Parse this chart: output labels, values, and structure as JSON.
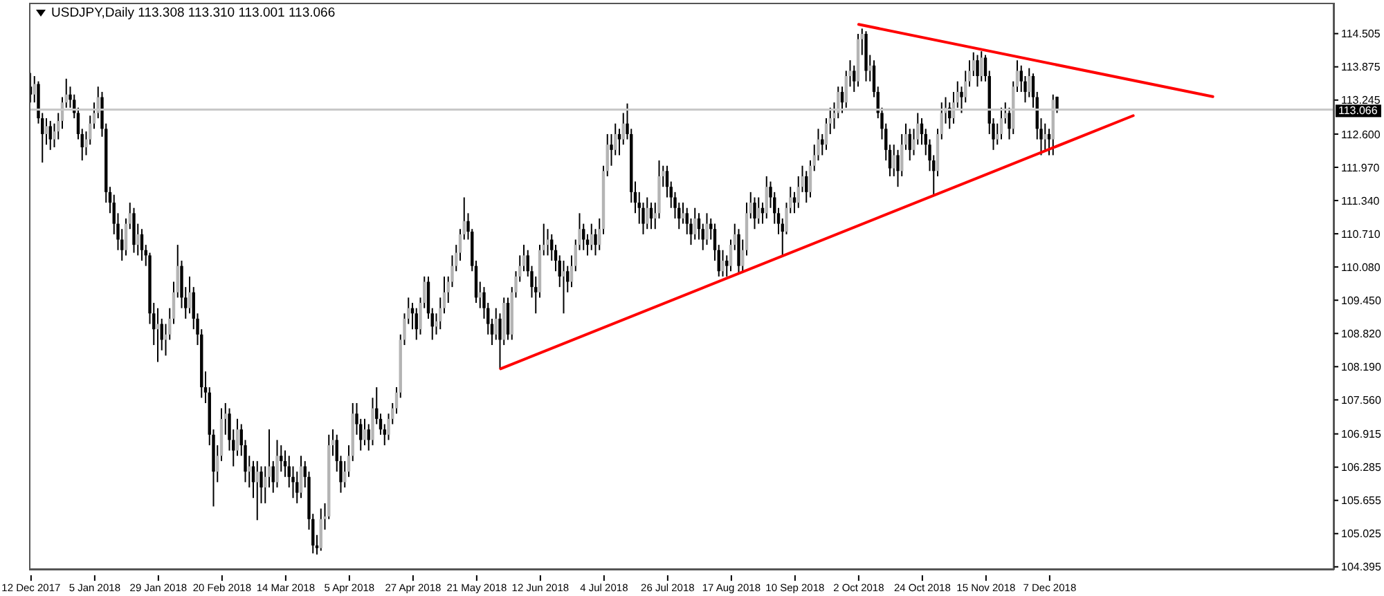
{
  "chart_data": {
    "type": "candlestick",
    "title": "USDJPY,Daily 113.308 113.310 113.001 113.066",
    "categories": [
      "12 Dec 2017",
      null,
      null,
      null,
      null,
      null,
      null,
      null,
      null,
      null,
      null,
      null,
      null,
      null,
      null,
      null,
      "5 Jan 2018",
      null,
      null,
      null,
      null,
      null,
      null,
      null,
      null,
      null,
      null,
      null,
      null,
      null,
      null,
      null,
      "29 Jan 2018",
      null,
      null,
      null,
      null,
      null,
      null,
      null,
      null,
      null,
      null,
      null,
      null,
      null,
      null,
      null,
      "20 Feb 2018",
      null,
      null,
      null,
      null,
      null,
      null,
      null,
      null,
      null,
      null,
      null,
      null,
      null,
      null,
      null,
      "14 Mar 2018",
      null,
      null,
      null,
      null,
      null,
      null,
      null,
      null,
      null,
      null,
      null,
      null,
      null,
      null,
      null,
      "5 Apr 2018",
      null,
      null,
      null,
      null,
      null,
      null,
      null,
      null,
      null,
      null,
      null,
      null,
      null,
      null,
      null,
      "27 Apr 2018",
      null,
      null,
      null,
      null,
      null,
      null,
      null,
      null,
      null,
      null,
      null,
      null,
      null,
      null,
      null,
      "21 May 2018",
      null,
      null,
      null,
      null,
      null,
      null,
      null,
      null,
      null,
      null,
      null,
      null,
      null,
      null,
      null,
      "12 Jun 2018",
      null,
      null,
      null,
      null,
      null,
      null,
      null,
      null,
      null,
      null,
      null,
      null,
      null,
      null,
      null,
      "4 Jul 2018",
      null,
      null,
      null,
      null,
      null,
      null,
      null,
      null,
      null,
      null,
      null,
      null,
      null,
      null,
      null,
      "26 Jul 2018",
      null,
      null,
      null,
      null,
      null,
      null,
      null,
      null,
      null,
      null,
      null,
      null,
      null,
      null,
      null,
      "17 Aug 2018",
      null,
      null,
      null,
      null,
      null,
      null,
      null,
      null,
      null,
      null,
      null,
      null,
      null,
      null,
      null,
      "10 Sep 2018",
      null,
      null,
      null,
      null,
      null,
      null,
      null,
      null,
      null,
      null,
      null,
      null,
      null,
      null,
      null,
      "2 Oct 2018",
      null,
      null,
      null,
      null,
      null,
      null,
      null,
      null,
      null,
      null,
      null,
      null,
      null,
      null,
      null,
      "24 Oct 2018",
      null,
      null,
      null,
      null,
      null,
      null,
      null,
      null,
      null,
      null,
      null,
      null,
      null,
      null,
      null,
      "15 Nov 2018",
      null,
      null,
      null,
      null,
      null,
      null,
      null,
      null,
      null,
      null,
      null,
      null,
      null,
      null,
      null,
      "7 Dec 2018",
      null,
      null,
      null,
      null,
      null,
      null,
      null,
      null,
      null,
      null,
      null,
      null,
      null,
      null,
      null,
      null,
      null,
      null,
      null,
      null,
      null,
      null,
      null,
      null,
      null,
      null,
      null,
      null,
      null,
      null,
      null,
      null,
      null,
      null,
      null,
      null,
      null,
      null,
      null,
      null,
      null,
      null,
      null,
      null,
      null,
      null,
      null,
      null,
      null,
      null,
      null,
      null,
      null,
      null,
      null,
      null,
      null,
      null,
      null,
      null,
      null,
      null,
      null,
      null,
      null,
      null,
      null,
      null,
      null,
      null,
      null
    ],
    "ohlc": [
      [
        113.5,
        113.76,
        113.2,
        113.35
      ],
      [
        113.35,
        113.7,
        113.2,
        113.55
      ],
      [
        113.55,
        113.6,
        112.8,
        112.9
      ],
      [
        112.9,
        113.0,
        112.06,
        112.6
      ],
      [
        112.6,
        112.9,
        112.4,
        112.75
      ],
      [
        112.75,
        112.85,
        112.3,
        112.5
      ],
      [
        112.5,
        112.8,
        112.35,
        112.65
      ],
      [
        112.65,
        113.0,
        112.5,
        112.85
      ],
      [
        112.85,
        113.3,
        112.7,
        113.2
      ],
      [
        113.2,
        113.65,
        113.1,
        113.35
      ],
      [
        113.35,
        113.5,
        113.1,
        113.25
      ],
      [
        113.25,
        113.35,
        112.9,
        113.0
      ],
      [
        113.0,
        113.1,
        112.5,
        112.6
      ],
      [
        112.6,
        112.7,
        112.1,
        112.35
      ],
      [
        112.35,
        112.65,
        112.2,
        112.5
      ],
      [
        112.5,
        112.95,
        112.4,
        112.8
      ],
      [
        112.8,
        113.2,
        112.7,
        113.0
      ],
      [
        113.0,
        113.5,
        112.9,
        113.3
      ],
      [
        113.3,
        113.4,
        112.55,
        112.7
      ],
      [
        112.7,
        112.8,
        111.3,
        111.5
      ],
      [
        111.5,
        111.6,
        111.1,
        111.3
      ],
      [
        111.3,
        111.45,
        110.7,
        110.9
      ],
      [
        110.9,
        111.1,
        110.4,
        110.6
      ],
      [
        110.6,
        110.8,
        110.2,
        110.4
      ],
      [
        110.4,
        111.0,
        110.3,
        110.9
      ],
      [
        110.9,
        111.3,
        110.8,
        111.1
      ],
      [
        111.1,
        111.2,
        110.35,
        110.5
      ],
      [
        110.5,
        110.9,
        110.3,
        110.7
      ],
      [
        110.7,
        110.8,
        110.2,
        110.4
      ],
      [
        110.4,
        110.5,
        110.1,
        110.3
      ],
      [
        110.3,
        110.35,
        109.0,
        109.2
      ],
      [
        109.2,
        109.4,
        108.6,
        108.9
      ],
      [
        108.9,
        109.3,
        108.28,
        109.0
      ],
      [
        109.0,
        109.1,
        108.5,
        108.7
      ],
      [
        108.7,
        109.0,
        108.4,
        108.8
      ],
      [
        108.8,
        109.3,
        108.7,
        109.1
      ],
      [
        109.1,
        109.8,
        109.0,
        109.6
      ],
      [
        109.6,
        110.5,
        109.5,
        110.1
      ],
      [
        110.1,
        110.2,
        109.3,
        109.5
      ],
      [
        109.5,
        109.7,
        109.1,
        109.3
      ],
      [
        109.3,
        109.9,
        109.2,
        109.6
      ],
      [
        109.6,
        109.7,
        108.9,
        109.1
      ],
      [
        109.1,
        109.2,
        108.6,
        108.8
      ],
      [
        108.8,
        108.9,
        107.6,
        107.8
      ],
      [
        107.8,
        108.1,
        107.5,
        107.7
      ],
      [
        107.7,
        107.8,
        106.7,
        106.9
      ],
      [
        106.9,
        107.0,
        105.54,
        106.2
      ],
      [
        106.2,
        106.7,
        106.0,
        106.5
      ],
      [
        106.5,
        107.4,
        106.4,
        107.2
      ],
      [
        107.2,
        107.5,
        106.9,
        107.3
      ],
      [
        107.3,
        107.4,
        106.6,
        106.8
      ],
      [
        106.8,
        107.0,
        106.3,
        106.6
      ],
      [
        106.6,
        107.2,
        106.5,
        107.0
      ],
      [
        107.0,
        107.1,
        106.5,
        106.7
      ],
      [
        106.7,
        106.8,
        106.0,
        106.2
      ],
      [
        106.2,
        106.5,
        105.9,
        106.3
      ],
      [
        106.3,
        106.4,
        105.7,
        106.0
      ],
      [
        106.0,
        106.4,
        105.28,
        106.2
      ],
      [
        106.2,
        106.3,
        105.6,
        105.9
      ],
      [
        105.9,
        106.3,
        105.6,
        106.1
      ],
      [
        106.1,
        107.0,
        105.9,
        106.3
      ],
      [
        106.3,
        106.4,
        105.8,
        106.0
      ],
      [
        106.0,
        106.8,
        105.9,
        106.5
      ],
      [
        106.5,
        106.7,
        106.2,
        106.4
      ],
      [
        106.4,
        106.6,
        106.1,
        106.3
      ],
      [
        106.3,
        106.5,
        105.9,
        106.1
      ],
      [
        106.1,
        106.3,
        105.7,
        106.0
      ],
      [
        106.0,
        106.2,
        105.6,
        105.8
      ],
      [
        105.8,
        106.5,
        105.7,
        106.3
      ],
      [
        106.3,
        106.4,
        105.9,
        106.1
      ],
      [
        106.1,
        106.2,
        105.1,
        105.3
      ],
      [
        105.3,
        105.4,
        104.65,
        104.8
      ],
      [
        104.8,
        105.0,
        104.63,
        104.75
      ],
      [
        104.75,
        105.5,
        104.7,
        105.3
      ],
      [
        105.3,
        105.6,
        105.1,
        105.35
      ],
      [
        105.35,
        106.9,
        105.3,
        106.7
      ],
      [
        106.7,
        107.0,
        106.5,
        106.8
      ],
      [
        106.8,
        106.9,
        106.2,
        106.4
      ],
      [
        106.4,
        106.5,
        105.8,
        106.0
      ],
      [
        106.0,
        106.4,
        105.9,
        106.2
      ],
      [
        106.2,
        106.7,
        106.1,
        106.5
      ],
      [
        106.5,
        107.5,
        106.4,
        107.3
      ],
      [
        107.3,
        107.5,
        106.9,
        107.1
      ],
      [
        107.1,
        107.2,
        106.6,
        106.8
      ],
      [
        106.8,
        107.2,
        106.7,
        107.0
      ],
      [
        107.0,
        107.1,
        106.6,
        106.8
      ],
      [
        106.8,
        107.6,
        106.7,
        107.4
      ],
      [
        107.4,
        107.8,
        107.1,
        107.2
      ],
      [
        107.2,
        107.3,
        106.9,
        107.0
      ],
      [
        107.0,
        107.1,
        106.7,
        106.9
      ],
      [
        106.9,
        107.3,
        106.8,
        107.2
      ],
      [
        107.2,
        107.5,
        107.1,
        107.4
      ],
      [
        107.4,
        107.8,
        107.3,
        107.7
      ],
      [
        107.7,
        108.8,
        107.6,
        108.7
      ],
      [
        108.7,
        109.2,
        108.6,
        109.1
      ],
      [
        109.1,
        109.5,
        109.0,
        109.3
      ],
      [
        109.3,
        109.4,
        108.9,
        109.2
      ],
      [
        109.2,
        109.3,
        108.7,
        108.9
      ],
      [
        108.9,
        109.5,
        108.8,
        109.4
      ],
      [
        109.4,
        109.9,
        109.3,
        109.8
      ],
      [
        109.8,
        109.9,
        109.1,
        109.2
      ],
      [
        109.2,
        109.3,
        108.7,
        108.95
      ],
      [
        108.95,
        109.2,
        108.8,
        109.05
      ],
      [
        109.05,
        109.5,
        108.9,
        109.3
      ],
      [
        109.3,
        109.9,
        109.2,
        109.6
      ],
      [
        109.6,
        109.9,
        109.4,
        109.8
      ],
      [
        109.8,
        110.3,
        109.7,
        110.1
      ],
      [
        110.1,
        110.5,
        110.0,
        110.35
      ],
      [
        110.35,
        110.8,
        110.2,
        110.7
      ],
      [
        110.7,
        111.4,
        110.6,
        110.95
      ],
      [
        110.95,
        111.1,
        110.6,
        110.75
      ],
      [
        110.75,
        110.8,
        110.0,
        110.1
      ],
      [
        110.1,
        110.2,
        109.4,
        109.5
      ],
      [
        109.5,
        109.8,
        109.3,
        109.6
      ],
      [
        109.6,
        109.7,
        109.1,
        109.3
      ],
      [
        109.3,
        109.4,
        108.8,
        109.0
      ],
      [
        109.0,
        109.1,
        108.6,
        108.8
      ],
      [
        108.8,
        109.3,
        108.7,
        109.1
      ],
      [
        109.1,
        109.2,
        108.15,
        108.7
      ],
      [
        108.7,
        109.5,
        108.6,
        109.4
      ],
      [
        109.4,
        109.5,
        108.7,
        108.8
      ],
      [
        108.8,
        109.7,
        108.7,
        109.6
      ],
      [
        109.6,
        110.0,
        109.5,
        109.9
      ],
      [
        109.9,
        110.3,
        109.8,
        110.1
      ],
      [
        110.1,
        110.5,
        110.0,
        110.3
      ],
      [
        110.3,
        110.4,
        109.9,
        110.0
      ],
      [
        110.0,
        110.1,
        109.5,
        109.7
      ],
      [
        109.7,
        109.9,
        109.2,
        109.6
      ],
      [
        109.6,
        110.5,
        109.5,
        110.4
      ],
      [
        110.4,
        110.9,
        110.3,
        110.5
      ],
      [
        110.5,
        110.8,
        110.3,
        110.6
      ],
      [
        110.6,
        110.7,
        110.2,
        110.4
      ],
      [
        110.4,
        110.5,
        110.0,
        110.2
      ],
      [
        110.2,
        110.3,
        109.7,
        109.9
      ],
      [
        109.9,
        110.2,
        109.2,
        110.0
      ],
      [
        110.0,
        110.1,
        109.6,
        109.8
      ],
      [
        109.8,
        110.3,
        109.7,
        110.1
      ],
      [
        110.1,
        110.6,
        110.0,
        110.5
      ],
      [
        110.5,
        111.1,
        110.4,
        110.8
      ],
      [
        110.8,
        110.9,
        110.4,
        110.6
      ],
      [
        110.6,
        110.7,
        110.3,
        110.5
      ],
      [
        110.5,
        110.9,
        110.4,
        110.7
      ],
      [
        110.7,
        110.8,
        110.3,
        110.5
      ],
      [
        110.5,
        111.0,
        110.4,
        110.8
      ],
      [
        110.8,
        112.0,
        110.7,
        111.9
      ],
      [
        111.9,
        112.6,
        111.8,
        112.4
      ],
      [
        112.4,
        112.6,
        112.0,
        112.3
      ],
      [
        112.3,
        112.8,
        112.2,
        112.6
      ],
      [
        112.6,
        112.7,
        112.2,
        112.5
      ],
      [
        112.5,
        113.0,
        112.4,
        112.8
      ],
      [
        112.8,
        113.18,
        112.5,
        112.6
      ],
      [
        112.6,
        112.7,
        111.3,
        111.5
      ],
      [
        111.5,
        111.7,
        111.1,
        111.3
      ],
      [
        111.3,
        111.5,
        110.9,
        111.2
      ],
      [
        111.2,
        111.3,
        110.7,
        110.9
      ],
      [
        110.9,
        111.4,
        110.8,
        111.2
      ],
      [
        111.2,
        111.3,
        110.8,
        111.0
      ],
      [
        111.0,
        111.3,
        110.8,
        111.1
      ],
      [
        111.1,
        112.1,
        111.0,
        111.8
      ],
      [
        111.8,
        112.0,
        111.6,
        111.9
      ],
      [
        111.9,
        112.0,
        111.4,
        111.6
      ],
      [
        111.6,
        111.7,
        111.2,
        111.4
      ],
      [
        111.4,
        111.5,
        111.0,
        111.2
      ],
      [
        111.2,
        111.3,
        110.8,
        111.0
      ],
      [
        111.0,
        111.3,
        110.9,
        111.1
      ],
      [
        111.1,
        111.2,
        110.7,
        110.9
      ],
      [
        110.9,
        111.0,
        110.5,
        110.7
      ],
      [
        110.7,
        111.2,
        110.6,
        111.0
      ],
      [
        111.0,
        111.1,
        110.6,
        110.8
      ],
      [
        110.8,
        110.9,
        110.4,
        110.6
      ],
      [
        110.6,
        111.1,
        110.5,
        110.9
      ],
      [
        110.9,
        111.0,
        110.6,
        110.8
      ],
      [
        110.8,
        110.9,
        110.2,
        110.4
      ],
      [
        110.4,
        110.5,
        109.9,
        110.0
      ],
      [
        110.0,
        110.4,
        109.9,
        110.2
      ],
      [
        110.2,
        110.3,
        109.9,
        110.1
      ],
      [
        110.1,
        110.6,
        110.0,
        110.5
      ],
      [
        110.5,
        110.9,
        110.4,
        110.7
      ],
      [
        110.7,
        110.8,
        109.95,
        110.1
      ],
      [
        110.1,
        110.6,
        109.98,
        110.4
      ],
      [
        110.4,
        111.3,
        110.3,
        111.1
      ],
      [
        111.1,
        111.5,
        111.0,
        111.3
      ],
      [
        111.3,
        111.4,
        110.8,
        111.0
      ],
      [
        111.0,
        111.4,
        110.9,
        111.2
      ],
      [
        111.2,
        111.3,
        110.9,
        111.1
      ],
      [
        111.1,
        111.8,
        111.0,
        111.6
      ],
      [
        111.6,
        111.7,
        111.2,
        111.4
      ],
      [
        111.4,
        111.5,
        110.9,
        111.1
      ],
      [
        111.1,
        111.2,
        110.7,
        110.9
      ],
      [
        110.9,
        111.0,
        110.3,
        110.75
      ],
      [
        110.75,
        111.3,
        110.7,
        111.2
      ],
      [
        111.2,
        111.6,
        111.1,
        111.4
      ],
      [
        111.4,
        111.5,
        111.1,
        111.3
      ],
      [
        111.3,
        111.8,
        111.2,
        111.6
      ],
      [
        111.6,
        112.0,
        111.5,
        111.8
      ],
      [
        111.8,
        111.9,
        111.3,
        111.5
      ],
      [
        111.5,
        112.1,
        111.4,
        112.0
      ],
      [
        112.0,
        112.4,
        111.9,
        112.2
      ],
      [
        112.2,
        112.7,
        112.1,
        112.5
      ],
      [
        112.5,
        112.6,
        112.2,
        112.4
      ],
      [
        112.4,
        112.9,
        112.3,
        112.8
      ],
      [
        112.8,
        113.1,
        112.6,
        112.9
      ],
      [
        112.9,
        113.2,
        112.7,
        113.0
      ],
      [
        113.0,
        113.5,
        112.9,
        113.4
      ],
      [
        113.4,
        113.5,
        113.0,
        113.2
      ],
      [
        113.2,
        113.8,
        113.1,
        113.7
      ],
      [
        113.7,
        114.0,
        113.5,
        113.8
      ],
      [
        113.8,
        113.9,
        113.4,
        113.6
      ],
      [
        113.6,
        114.5,
        113.5,
        114.4
      ],
      [
        114.4,
        114.6,
        114.1,
        114.5
      ],
      [
        114.5,
        114.55,
        113.6,
        113.8
      ],
      [
        113.8,
        114.1,
        113.6,
        113.9
      ],
      [
        113.9,
        114.0,
        113.3,
        113.4
      ],
      [
        113.4,
        113.5,
        112.9,
        113.0
      ],
      [
        113.0,
        113.1,
        112.5,
        112.7
      ],
      [
        112.7,
        112.8,
        112.1,
        112.3
      ],
      [
        112.3,
        112.4,
        111.8,
        111.95
      ],
      [
        111.95,
        112.4,
        111.8,
        112.2
      ],
      [
        112.2,
        112.3,
        111.6,
        111.9
      ],
      [
        111.9,
        112.6,
        111.8,
        112.4
      ],
      [
        112.4,
        112.8,
        112.3,
        112.6
      ],
      [
        112.6,
        112.7,
        112.1,
        112.3
      ],
      [
        112.3,
        112.7,
        112.2,
        112.5
      ],
      [
        112.5,
        113.0,
        112.4,
        112.8
      ],
      [
        112.8,
        112.9,
        112.4,
        112.6
      ],
      [
        112.6,
        112.7,
        112.2,
        112.4
      ],
      [
        112.4,
        112.5,
        111.9,
        112.1
      ],
      [
        112.1,
        112.2,
        111.44,
        111.9
      ],
      [
        111.9,
        112.7,
        111.8,
        112.6
      ],
      [
        112.6,
        113.2,
        112.5,
        113.0
      ],
      [
        113.0,
        113.3,
        112.8,
        113.1
      ],
      [
        113.1,
        113.2,
        112.7,
        112.9
      ],
      [
        112.9,
        113.4,
        112.8,
        113.2
      ],
      [
        113.2,
        113.6,
        113.1,
        113.4
      ],
      [
        113.4,
        113.5,
        113.0,
        113.3
      ],
      [
        113.3,
        113.8,
        113.2,
        113.6
      ],
      [
        113.6,
        114.0,
        113.5,
        113.8
      ],
      [
        113.8,
        114.15,
        113.7,
        114.0
      ],
      [
        114.0,
        114.1,
        113.5,
        113.7
      ],
      [
        113.7,
        114.17,
        113.6,
        114.05
      ],
      [
        114.05,
        114.1,
        113.6,
        113.7
      ],
      [
        113.7,
        113.8,
        112.6,
        112.8
      ],
      [
        112.8,
        112.9,
        112.3,
        112.5
      ],
      [
        112.5,
        112.8,
        112.4,
        112.6
      ],
      [
        112.6,
        113.1,
        112.5,
        112.9
      ],
      [
        112.9,
        113.2,
        112.8,
        113.0
      ],
      [
        113.0,
        113.1,
        112.5,
        112.7
      ],
      [
        112.7,
        113.6,
        112.6,
        113.5
      ],
      [
        113.5,
        114.0,
        113.4,
        113.8
      ],
      [
        113.8,
        113.9,
        113.4,
        113.6
      ],
      [
        113.6,
        113.7,
        113.2,
        113.4
      ],
      [
        113.4,
        113.85,
        113.3,
        113.7
      ],
      [
        113.7,
        113.75,
        113.1,
        113.3
      ],
      [
        113.3,
        113.4,
        112.5,
        112.7
      ],
      [
        112.7,
        112.9,
        112.2,
        112.5
      ],
      [
        112.5,
        112.8,
        112.3,
        112.6
      ],
      [
        112.6,
        112.7,
        112.2,
        112.5
      ],
      [
        112.5,
        113.35,
        112.2,
        113.25
      ],
      [
        113.308,
        113.31,
        113.001,
        113.066
      ],
      null,
      null,
      null,
      null,
      null,
      null,
      null,
      null,
      null,
      null,
      null,
      null,
      null,
      null,
      null,
      null,
      null,
      null,
      null,
      null,
      null,
      null,
      null,
      null,
      null,
      null,
      null,
      null,
      null,
      null,
      null,
      null,
      null,
      null,
      null,
      null,
      null,
      null,
      null,
      null,
      null,
      null,
      null,
      null,
      null,
      null,
      null,
      null,
      null,
      null,
      null,
      null,
      null,
      null,
      null,
      null,
      null,
      null,
      null,
      null,
      null,
      null,
      null,
      null,
      null,
      null,
      null,
      null,
      null
    ],
    "series": [
      {
        "type": "line",
        "color": "#ff0000",
        "values": [
          null,
          null,
          null,
          null,
          null,
          null,
          null,
          null,
          null,
          null,
          null,
          null,
          null,
          null,
          null,
          null,
          null,
          null,
          null,
          null,
          null,
          null,
          null,
          null,
          null,
          null,
          null,
          null,
          null,
          null,
          null,
          null,
          null,
          null,
          null,
          null,
          null,
          null,
          null,
          null,
          null,
          null,
          null,
          null,
          null,
          null,
          null,
          null,
          null,
          null,
          null,
          null,
          null,
          null,
          null,
          null,
          null,
          null,
          null,
          null,
          null,
          null,
          null,
          null,
          null,
          null,
          null,
          null,
          null,
          null,
          null,
          null,
          null,
          null,
          null,
          null,
          null,
          null,
          null,
          null,
          null,
          null,
          null,
          null,
          null,
          null,
          null,
          null,
          null,
          null,
          null,
          null,
          null,
          null,
          null,
          null,
          null,
          null,
          null,
          null,
          null,
          null,
          null,
          null,
          null,
          null,
          null,
          null,
          null,
          null,
          null,
          null,
          null,
          null,
          null,
          null,
          null,
          null,
          108.15,
          null,
          null,
          null,
          null,
          null,
          null,
          null,
          null,
          null,
          null,
          null,
          null,
          null,
          null,
          null,
          null,
          null,
          null,
          null,
          null,
          null,
          null,
          null,
          null,
          null,
          null,
          null,
          null,
          null,
          null,
          null,
          null,
          null,
          null,
          null,
          null,
          null,
          null,
          null,
          null,
          null,
          null,
          null,
          null,
          null,
          null,
          null,
          null,
          null,
          null,
          null,
          null,
          null,
          null,
          null,
          null,
          null,
          null,
          null,
          null,
          null,
          null,
          null,
          null,
          null,
          null,
          null,
          null,
          null,
          null,
          null,
          null,
          null,
          null,
          null,
          null,
          null,
          null,
          null,
          null,
          null,
          null,
          null,
          null,
          null,
          null,
          null,
          null,
          null,
          null,
          null,
          null,
          null,
          null,
          null,
          null,
          null,
          null,
          null,
          null,
          null,
          null,
          null,
          null,
          null,
          null,
          null,
          null,
          null,
          null,
          null,
          null,
          null,
          null,
          null,
          null,
          null,
          null,
          null,
          null,
          null,
          null,
          null,
          null,
          null,
          null,
          null,
          null,
          null,
          null,
          null,
          null,
          null,
          null,
          null,
          null,
          null,
          null,
          null,
          null,
          null,
          null,
          null,
          null,
          null,
          null,
          null,
          null,
          null,
          null,
          null,
          null,
          null,
          null,
          null,
          null,
          null,
          null,
          112.95,
          null,
          null,
          null,
          null,
          null,
          null,
          null,
          null,
          null,
          null,
          null,
          null,
          null,
          null,
          null,
          null,
          null,
          null,
          null,
          null,
          null,
          null,
          null,
          null,
          null,
          null,
          null,
          null,
          null,
          null,
          null,
          null,
          null,
          null,
          null,
          null,
          null,
          null,
          null,
          null,
          null,
          null,
          null,
          null,
          null,
          null,
          null,
          null,
          null,
          null
        ]
      },
      {
        "type": "line",
        "color": "#ff0000",
        "values": [
          null,
          null,
          null,
          null,
          null,
          null,
          null,
          null,
          null,
          null,
          null,
          null,
          null,
          null,
          null,
          null,
          null,
          null,
          null,
          null,
          null,
          null,
          null,
          null,
          null,
          null,
          null,
          null,
          null,
          null,
          null,
          null,
          null,
          null,
          null,
          null,
          null,
          null,
          null,
          null,
          null,
          null,
          null,
          null,
          null,
          null,
          null,
          null,
          null,
          null,
          null,
          null,
          null,
          null,
          null,
          null,
          null,
          null,
          null,
          null,
          null,
          null,
          null,
          null,
          null,
          null,
          null,
          null,
          null,
          null,
          null,
          null,
          null,
          null,
          null,
          null,
          null,
          null,
          null,
          null,
          null,
          null,
          null,
          null,
          null,
          null,
          null,
          null,
          null,
          null,
          null,
          null,
          null,
          null,
          null,
          null,
          null,
          null,
          null,
          null,
          null,
          null,
          null,
          null,
          null,
          null,
          null,
          null,
          null,
          null,
          null,
          null,
          null,
          null,
          null,
          null,
          null,
          null,
          null,
          null,
          null,
          null,
          null,
          null,
          null,
          null,
          null,
          null,
          null,
          null,
          null,
          null,
          null,
          null,
          null,
          null,
          null,
          null,
          null,
          null,
          null,
          null,
          null,
          null,
          null,
          null,
          null,
          null,
          null,
          null,
          null,
          null,
          null,
          null,
          null,
          null,
          null,
          null,
          null,
          null,
          null,
          null,
          null,
          null,
          null,
          null,
          null,
          null,
          null,
          null,
          null,
          null,
          null,
          null,
          null,
          null,
          null,
          null,
          null,
          null,
          null,
          null,
          null,
          null,
          null,
          null,
          null,
          null,
          null,
          null,
          null,
          null,
          null,
          null,
          null,
          null,
          null,
          null,
          null,
          null,
          null,
          null,
          null,
          null,
          null,
          null,
          null,
          null,
          114.68,
          null,
          null,
          null,
          null,
          null,
          null,
          null,
          null,
          null,
          null,
          null,
          null,
          null,
          null,
          null,
          null,
          null,
          null,
          null,
          null,
          null,
          null,
          null,
          null,
          null,
          null,
          null,
          null,
          null,
          null,
          null,
          null,
          null,
          null,
          null,
          null,
          null,
          null,
          null,
          null,
          null,
          null,
          null,
          null,
          null,
          null,
          null,
          null,
          null,
          null,
          null,
          null,
          null,
          null,
          null,
          null,
          null,
          null,
          null,
          null,
          null,
          null,
          null,
          null,
          null,
          null,
          null,
          null,
          null,
          null,
          null,
          null,
          null,
          null,
          null,
          null,
          null,
          null,
          null,
          null,
          null,
          null,
          null,
          null,
          null,
          null,
          null,
          null,
          113.31,
          null,
          null,
          null,
          null,
          null,
          null,
          null,
          null,
          null,
          null,
          null,
          null,
          null,
          null,
          null,
          null,
          null,
          null,
          null,
          null,
          null,
          null,
          null,
          null,
          null,
          null,
          null,
          null,
          null,
          null
        ]
      }
    ],
    "ylim": [
      104.34,
      115.09
    ],
    "yticks": [
      114.505,
      113.875,
      113.245,
      {
        "value": 112.6,
        "label": "112.600"
      },
      {
        "value": 111.97,
        "label": "111.970"
      },
      {
        "value": 111.34,
        "label": "111.340"
      },
      {
        "value": 110.71,
        "label": "110.710"
      },
      {
        "value": 110.08,
        "label": "110.080"
      },
      {
        "value": 109.45,
        "label": "109.450"
      },
      {
        "value": 108.82,
        "label": "108.820"
      },
      {
        "value": 108.19,
        "label": "108.190"
      },
      {
        "value": 107.56,
        "label": "107.560"
      },
      106.915,
      106.285,
      105.655,
      105.025,
      104.395
    ],
    "ref_lines": [
      {
        "axis": "y",
        "value": 113.066,
        "label": "113.066",
        "color": "#c8c8c8"
      }
    ]
  }
}
